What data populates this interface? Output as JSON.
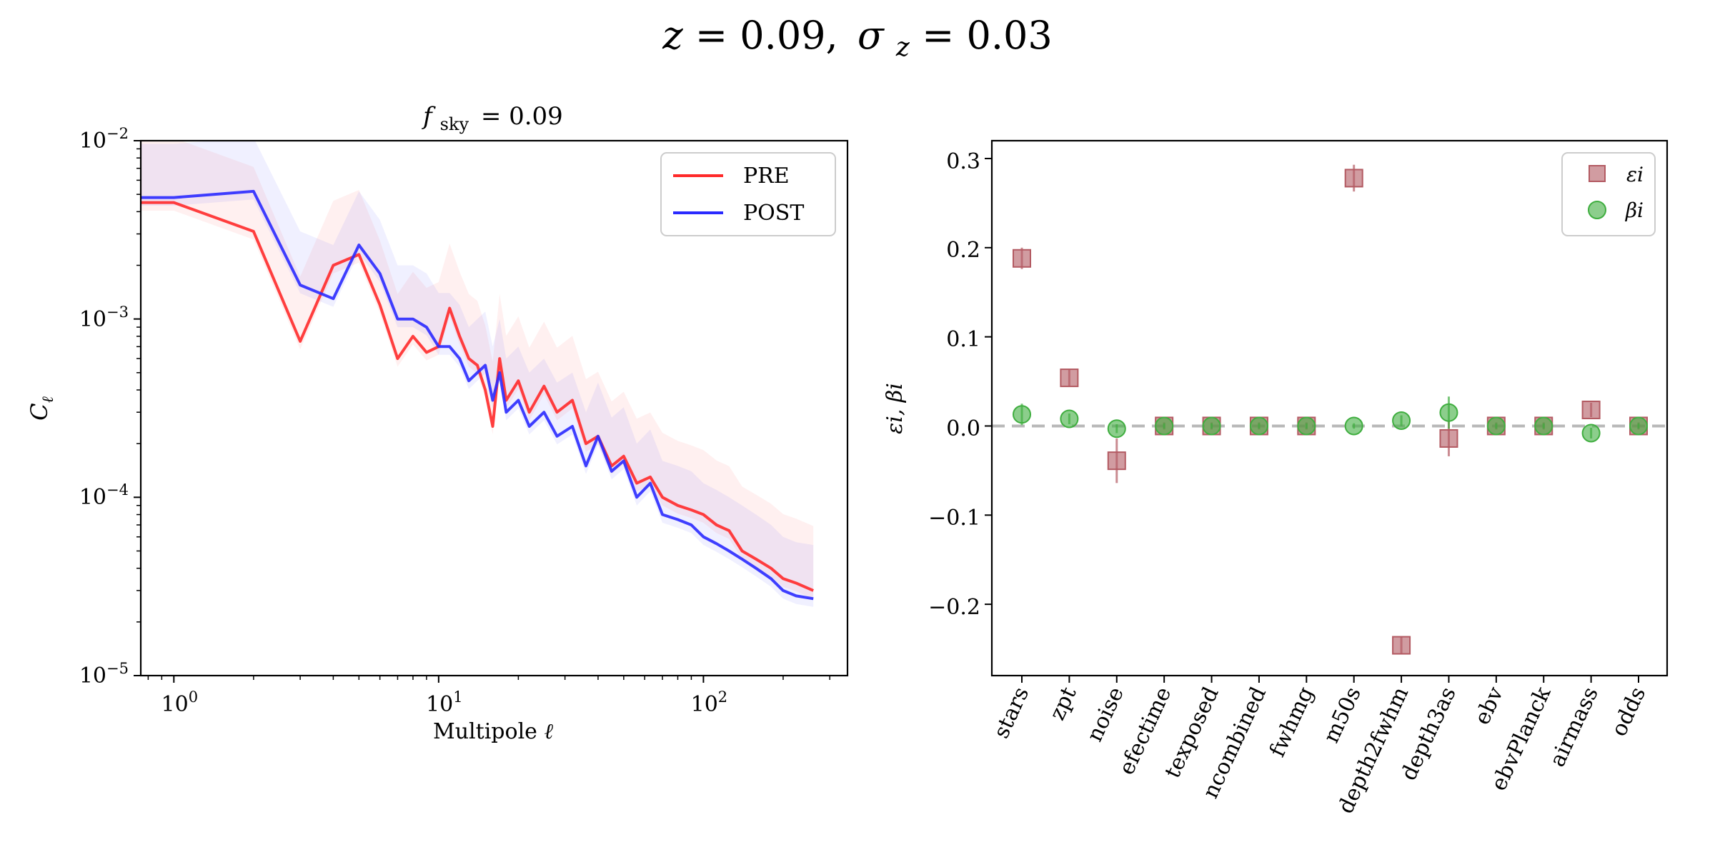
{
  "figure": {
    "suptitle": "z = 0.09, σ_z = 0.03",
    "suptitle_parts": {
      "z_var": "z",
      "z_val": "= 0.09,",
      "sigma": "σ",
      "sigma_sub": "z",
      "sigma_val": "= 0.03"
    }
  },
  "left_panel": {
    "title_var": "f",
    "title_sub": "sky",
    "title_val": "= 0.09",
    "ylabel_var": "C",
    "ylabel_sub": "ℓ",
    "xlabel_text": "Multipole",
    "xlabel_var": "ℓ",
    "xticks": [
      {
        "base": "10",
        "exp": "0"
      },
      {
        "base": "10",
        "exp": "1"
      },
      {
        "base": "10",
        "exp": "2"
      }
    ],
    "yticks": [
      {
        "base": "10",
        "exp": "−2"
      },
      {
        "base": "10",
        "exp": "−3"
      },
      {
        "base": "10",
        "exp": "−4"
      },
      {
        "base": "10",
        "exp": "−5"
      }
    ],
    "legend": [
      "PRE",
      "POST"
    ]
  },
  "right_panel": {
    "ylabel": "εi, βi",
    "legend": [
      "εi",
      "βi"
    ],
    "ytick_labels": [
      "0.3",
      "0.2",
      "0.1",
      "0.0",
      "−0.1",
      "−0.2"
    ]
  },
  "colors": {
    "pre": "#ff2a2a",
    "post": "#2a2aff",
    "epsilon": "#b35a62",
    "beta": "#3fae3f",
    "zero_line": "#b8b8b8"
  },
  "chart_data": [
    {
      "type": "line",
      "title": "f_sky = 0.09",
      "xlabel": "Multipole ℓ",
      "ylabel": "C_ℓ",
      "xscale": "log",
      "yscale": "log",
      "xlim": [
        0.75,
        350
      ],
      "ylim": [
        1e-05,
        0.01
      ],
      "legend_position": "top-right",
      "series": [
        {
          "name": "PRE",
          "x": [
            0.75,
            1,
            2,
            3,
            4,
            5,
            6,
            7,
            8,
            9,
            10,
            11,
            12,
            13,
            14,
            15,
            16,
            17,
            18,
            20,
            22,
            25,
            28,
            32,
            36,
            40,
            45,
            50,
            56,
            63,
            70,
            80,
            90,
            100,
            112,
            125,
            140,
            158,
            180,
            200,
            224,
            260
          ],
          "y": [
            0.0045,
            0.0045,
            0.0031,
            0.00075,
            0.002,
            0.0023,
            0.0012,
            0.0006,
            0.0008,
            0.00065,
            0.0007,
            0.00115,
            0.0008,
            0.0006,
            0.00055,
            0.0004,
            0.00025,
            0.0006,
            0.00035,
            0.00045,
            0.0003,
            0.00042,
            0.0003,
            0.00035,
            0.0002,
            0.00022,
            0.00015,
            0.00017,
            0.00012,
            0.00013,
            0.0001,
            9e-05,
            8.5e-05,
            8e-05,
            7e-05,
            6.5e-05,
            5e-05,
            4.5e-05,
            4e-05,
            3.5e-05,
            3.3e-05,
            3e-05
          ]
        },
        {
          "name": "POST",
          "x": [
            0.75,
            1,
            2,
            3,
            4,
            5,
            6,
            7,
            8,
            9,
            10,
            11,
            12,
            13,
            14,
            15,
            16,
            17,
            18,
            20,
            22,
            25,
            28,
            32,
            36,
            40,
            45,
            50,
            56,
            63,
            70,
            80,
            90,
            100,
            112,
            125,
            140,
            158,
            180,
            200,
            224,
            260
          ],
          "y": [
            0.0048,
            0.0048,
            0.0052,
            0.00155,
            0.0013,
            0.0026,
            0.0018,
            0.001,
            0.001,
            0.0009,
            0.0007,
            0.0007,
            0.0006,
            0.00045,
            0.0005,
            0.00055,
            0.00035,
            0.0005,
            0.0003,
            0.00035,
            0.00025,
            0.0003,
            0.00022,
            0.00025,
            0.00015,
            0.00022,
            0.00014,
            0.00016,
            0.0001,
            0.00012,
            8e-05,
            7.5e-05,
            7e-05,
            6e-05,
            5.5e-05,
            5e-05,
            4.5e-05,
            4e-05,
            3.5e-05,
            3e-05,
            2.8e-05,
            2.7e-05
          ]
        }
      ]
    },
    {
      "type": "scatter",
      "title": "",
      "xlabel": "",
      "ylabel": "ε_i, β_i",
      "ylim": [
        -0.28,
        0.32
      ],
      "yticks": [
        0.3,
        0.2,
        0.1,
        0.0,
        -0.1,
        -0.2
      ],
      "legend_position": "top-right",
      "categories": [
        "stars",
        "zpt",
        "noise",
        "efectime",
        "texposed",
        "ncombined",
        "fwhmg",
        "m50s",
        "depth2fwhm",
        "depth3as",
        "ebv",
        "ebvPlanck",
        "airmass",
        "odds"
      ],
      "series": [
        {
          "name": "ε_i",
          "marker": "square",
          "values": [
            0.188,
            0.054,
            -0.039,
            0.0,
            0.0,
            0.0,
            0.0,
            0.278,
            -0.246,
            -0.014,
            0.0,
            0.0,
            0.018,
            0.0
          ],
          "errors": [
            0.012,
            0.01,
            0.025,
            0.004,
            0.004,
            0.004,
            0.004,
            0.015,
            0.01,
            0.02,
            0.004,
            0.004,
            0.008,
            0.004
          ]
        },
        {
          "name": "β_i",
          "marker": "circle",
          "values": [
            0.013,
            0.008,
            -0.003,
            0.0,
            0.0,
            0.0,
            0.0,
            0.0,
            0.006,
            0.015,
            0.0,
            0.0,
            -0.008,
            0.0
          ],
          "errors": [
            0.012,
            0.006,
            0.005,
            0.003,
            0.003,
            0.003,
            0.003,
            0.003,
            0.006,
            0.018,
            0.003,
            0.003,
            0.006,
            0.003
          ]
        }
      ],
      "zero_line": 0.0
    }
  ]
}
